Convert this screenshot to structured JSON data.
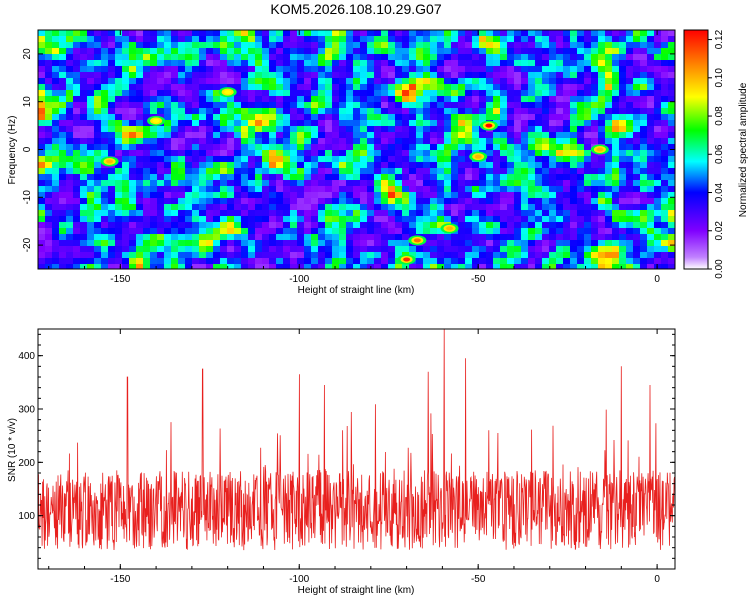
{
  "title": "KOM5.2026.108.10.29.G07",
  "chart_data": [
    {
      "type": "heatmap",
      "name": "spectrogram",
      "xlabel": "Height of straight line (km)",
      "ylabel": "Frequency (Hz)",
      "xlim": [
        -173,
        5
      ],
      "ylim": [
        -25,
        25
      ],
      "xticks": [
        -150,
        -100,
        -50,
        0
      ],
      "xtick_labels": [
        "-150",
        "-100",
        "-50",
        "0"
      ],
      "yticks": [
        -20,
        -10,
        0,
        10,
        20
      ],
      "ytick_labels": [
        "-20",
        "-10",
        "0",
        "10",
        "20"
      ],
      "colorbar": {
        "label": "Normalized spectral amplitude",
        "range": [
          0.0,
          0.125
        ],
        "ticks": [
          0.0,
          0.02,
          0.04,
          0.06,
          0.08,
          0.1,
          0.12
        ],
        "tick_labels": [
          "0.00",
          "0.02",
          "0.04",
          "0.06",
          "0.08",
          "0.10",
          "0.12"
        ],
        "colormap": [
          "#ffffff",
          "#8000ff",
          "#0000ff",
          "#00ffff",
          "#00ff00",
          "#ffff00",
          "#ff8000",
          "#ff0000"
        ]
      },
      "peaks": [
        {
          "x": -47,
          "y": 5,
          "value": 0.125
        },
        {
          "x": -70,
          "y": -23,
          "value": 0.12
        },
        {
          "x": -67,
          "y": -19,
          "value": 0.11
        },
        {
          "x": -58,
          "y": -16.5,
          "value": 0.1
        },
        {
          "x": -50,
          "y": -1.5,
          "value": 0.1
        },
        {
          "x": -16,
          "y": 0,
          "value": 0.1
        },
        {
          "x": -153,
          "y": -2.5,
          "value": 0.1
        },
        {
          "x": -120,
          "y": 12,
          "value": 0.09
        },
        {
          "x": -140,
          "y": 6,
          "value": 0.09
        }
      ]
    },
    {
      "type": "line",
      "name": "snr",
      "xlabel": "Height of straight line (km)",
      "ylabel": "SNR (10 * v/v)",
      "xlim": [
        -173,
        5
      ],
      "ylim": [
        0,
        450
      ],
      "xticks": [
        -150,
        -100,
        -50,
        0
      ],
      "xtick_labels": [
        "-150",
        "-100",
        "-50",
        "0"
      ],
      "yticks": [
        100,
        200,
        300,
        400
      ],
      "ytick_labels": [
        "100",
        "200",
        "300",
        "400"
      ],
      "color": "#e8201e",
      "baseline_mean": 110,
      "noise_spread": 75,
      "notable_spikes": [
        {
          "x": -59.5,
          "y": 450
        },
        {
          "x": -53.5,
          "y": 395
        },
        {
          "x": -10,
          "y": 380
        },
        {
          "x": -127,
          "y": 375
        },
        {
          "x": -64,
          "y": 370
        },
        {
          "x": -100,
          "y": 365
        },
        {
          "x": -148,
          "y": 360
        },
        {
          "x": -2,
          "y": 345
        },
        {
          "x": -93,
          "y": 345
        }
      ]
    }
  ]
}
